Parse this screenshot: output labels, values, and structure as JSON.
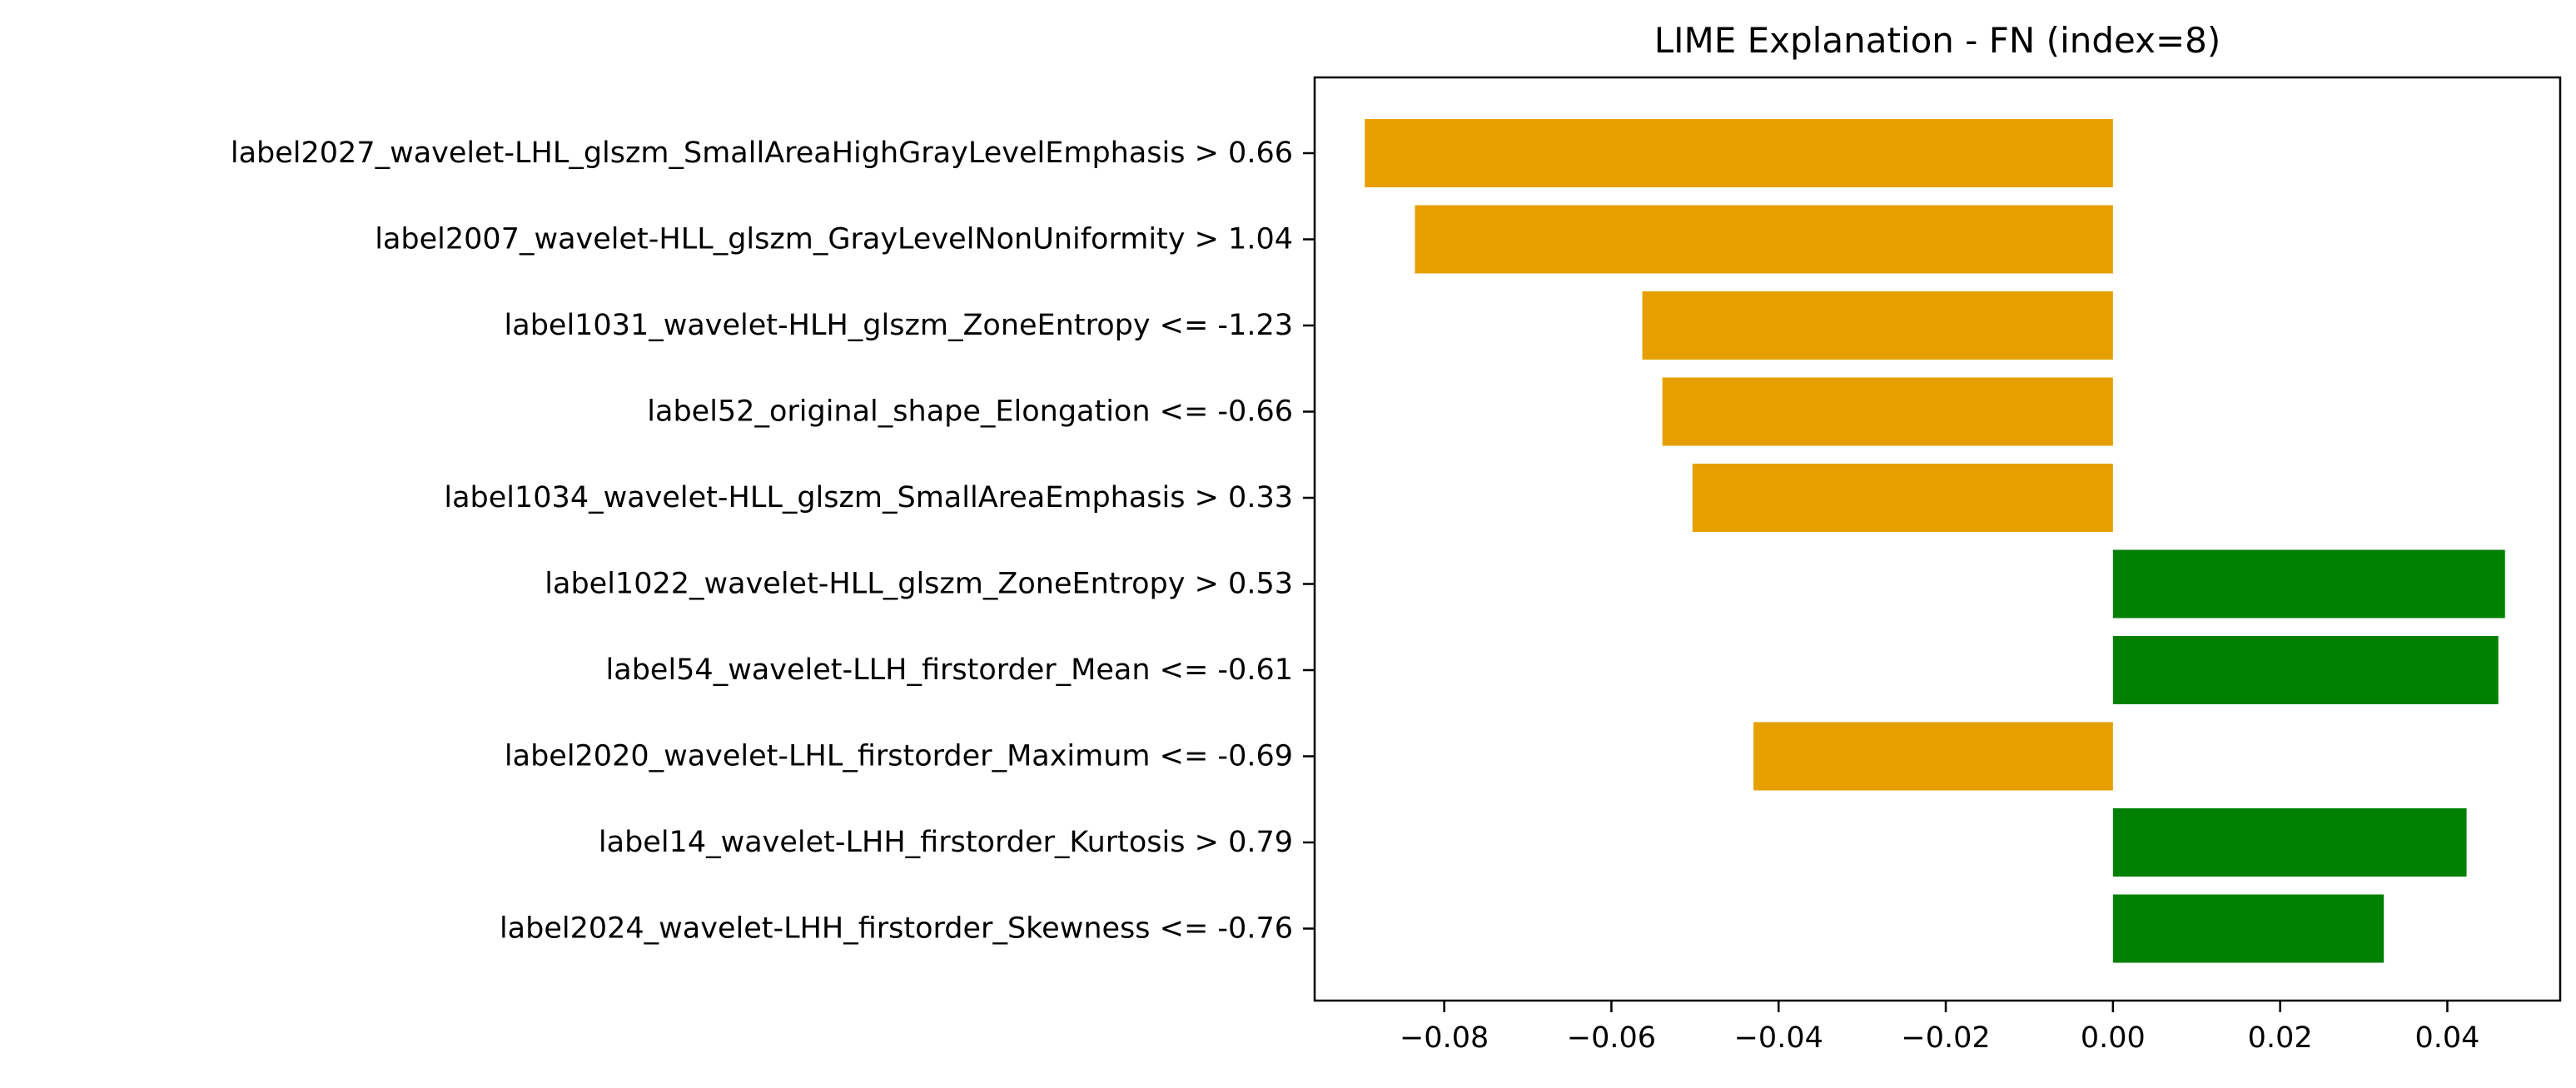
{
  "chart_data": {
    "type": "bar",
    "orientation": "horizontal",
    "title": "LIME Explanation - FN (index=8)",
    "xlabel": "",
    "ylabel": "",
    "xlim": [
      -0.0955,
      0.0535
    ],
    "grid": false,
    "categories": [
      "label2027_wavelet-LHL_glszm_SmallAreaHighGrayLevelEmphasis > 0.66",
      "label2007_wavelet-HLL_glszm_GrayLevelNonUniformity > 1.04",
      "label1031_wavelet-HLH_glszm_ZoneEntropy <= -1.23",
      "label52_original_shape_Elongation <= -0.66",
      "label1034_wavelet-HLL_glszm_SmallAreaEmphasis > 0.33",
      "label1022_wavelet-HLL_glszm_ZoneEntropy > 0.53",
      "label54_wavelet-LLH_firstorder_Mean <= -0.61",
      "label2020_wavelet-LHL_firstorder_Maximum <= -0.69",
      "label14_wavelet-LHH_firstorder_Kurtosis > 0.79",
      "label2024_wavelet-LHH_firstorder_Skewness <= -0.76"
    ],
    "values": [
      -0.0895,
      -0.0835,
      -0.0563,
      -0.0539,
      -0.0503,
      0.0469,
      0.0461,
      -0.043,
      0.0423,
      0.0324
    ],
    "xticks": [
      -0.08,
      -0.06,
      -0.04,
      -0.02,
      0.0,
      0.02,
      0.04
    ],
    "xtick_labels": [
      "−0.08",
      "−0.06",
      "−0.04",
      "−0.02",
      "0.00",
      "0.02",
      "0.04"
    ],
    "colors": {
      "negative": "#E5A000",
      "positive": "#008000"
    }
  }
}
